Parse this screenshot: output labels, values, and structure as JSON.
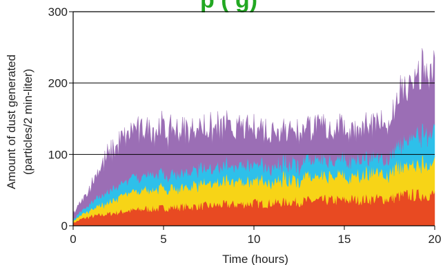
{
  "chart_data": {
    "type": "area",
    "stacked": true,
    "title_fragment": "p         (                   g)",
    "xlabel": "Time (hours)",
    "ylabel": [
      "Amount of dust generated",
      "(particles/2 min-liter)"
    ],
    "xlim": [
      0,
      20
    ],
    "ylim": [
      0,
      300
    ],
    "x_ticks": [
      "0",
      "5",
      "10",
      "15",
      "20"
    ],
    "y_ticks": [
      "0",
      "100",
      "200",
      "300"
    ],
    "grid_y": [
      100,
      200
    ],
    "series": [
      {
        "color": "#e84a22",
        "x": [
          0,
          0.5,
          1,
          1.5,
          2,
          2.5,
          3,
          3.5,
          4,
          4.5,
          5,
          5.5,
          6,
          6.5,
          7,
          7.5,
          8,
          8.5,
          9,
          9.5,
          10,
          10.5,
          11,
          11.5,
          12,
          12.5,
          13,
          13.5,
          14,
          14.5,
          15,
          15.5,
          16,
          16.5,
          17,
          17.5,
          18,
          18.5,
          19,
          19.5,
          20
        ],
        "values": [
          4,
          10,
          13,
          15,
          17,
          19,
          21,
          22,
          24,
          24,
          25,
          26,
          27,
          27,
          28,
          28,
          29,
          30,
          30,
          31,
          32,
          31,
          32,
          33,
          34,
          34,
          35,
          35,
          36,
          36,
          36,
          37,
          37,
          38,
          38,
          38,
          42,
          43,
          43,
          44,
          44
        ]
      },
      {
        "color": "#f7d417",
        "x": [
          0,
          0.5,
          1,
          1.5,
          2,
          2.5,
          3,
          3.5,
          4,
          4.5,
          5,
          5.5,
          6,
          6.5,
          7,
          7.5,
          8,
          8.5,
          9,
          9.5,
          10,
          10.5,
          11,
          11.5,
          12,
          12.5,
          13,
          13.5,
          14,
          14.5,
          15,
          15.5,
          16,
          16.5,
          17,
          17.5,
          18,
          18.5,
          19,
          19.5,
          20
        ],
        "values": [
          2,
          6,
          10,
          13,
          16,
          20,
          24,
          25,
          26,
          27,
          27,
          28,
          28,
          29,
          29,
          29,
          30,
          31,
          31,
          32,
          32,
          31,
          31,
          32,
          32,
          32,
          32,
          32,
          33,
          33,
          33,
          34,
          34,
          34,
          34,
          34,
          40,
          42,
          45,
          46,
          46
        ]
      },
      {
        "color": "#2ec0ea",
        "x": [
          0,
          0.5,
          1,
          1.5,
          2,
          2.5,
          3,
          3.5,
          4,
          4.5,
          5,
          5.5,
          6,
          6.5,
          7,
          7.5,
          8,
          8.5,
          9,
          9.5,
          10,
          10.5,
          11,
          11.5,
          12,
          12.5,
          13,
          13.5,
          14,
          14.5,
          15,
          15.5,
          16,
          16.5,
          17,
          17.5,
          18,
          18.5,
          19,
          19.5,
          20
        ],
        "values": [
          2,
          6,
          10,
          13,
          15,
          17,
          19,
          20,
          21,
          21,
          20,
          20,
          21,
          21,
          21,
          21,
          21,
          21,
          21,
          22,
          22,
          22,
          21,
          22,
          22,
          22,
          22,
          22,
          22,
          22,
          22,
          22,
          22,
          22,
          21,
          21,
          30,
          36,
          40,
          42,
          42
        ]
      },
      {
        "color": "#9b6eb5",
        "x": [
          0,
          0.5,
          1,
          1.5,
          2,
          2.5,
          3,
          3.5,
          4,
          4.5,
          5,
          5.5,
          6,
          6.5,
          7,
          7.5,
          8,
          8.5,
          9,
          9.5,
          10,
          10.5,
          11,
          11.5,
          12,
          12.5,
          13,
          13.5,
          14,
          14.5,
          15,
          15.5,
          16,
          16.5,
          17,
          17.5,
          18,
          18.5,
          19,
          19.5,
          20
        ],
        "values": [
          8,
          13,
          25,
          40,
          52,
          58,
          62,
          66,
          65,
          64,
          63,
          62,
          60,
          59,
          57,
          56,
          55,
          54,
          52,
          51,
          50,
          51,
          52,
          50,
          48,
          47,
          47,
          46,
          45,
          45,
          45,
          44,
          44,
          44,
          45,
          50,
          70,
          75,
          80,
          82,
          80
        ]
      }
    ]
  }
}
